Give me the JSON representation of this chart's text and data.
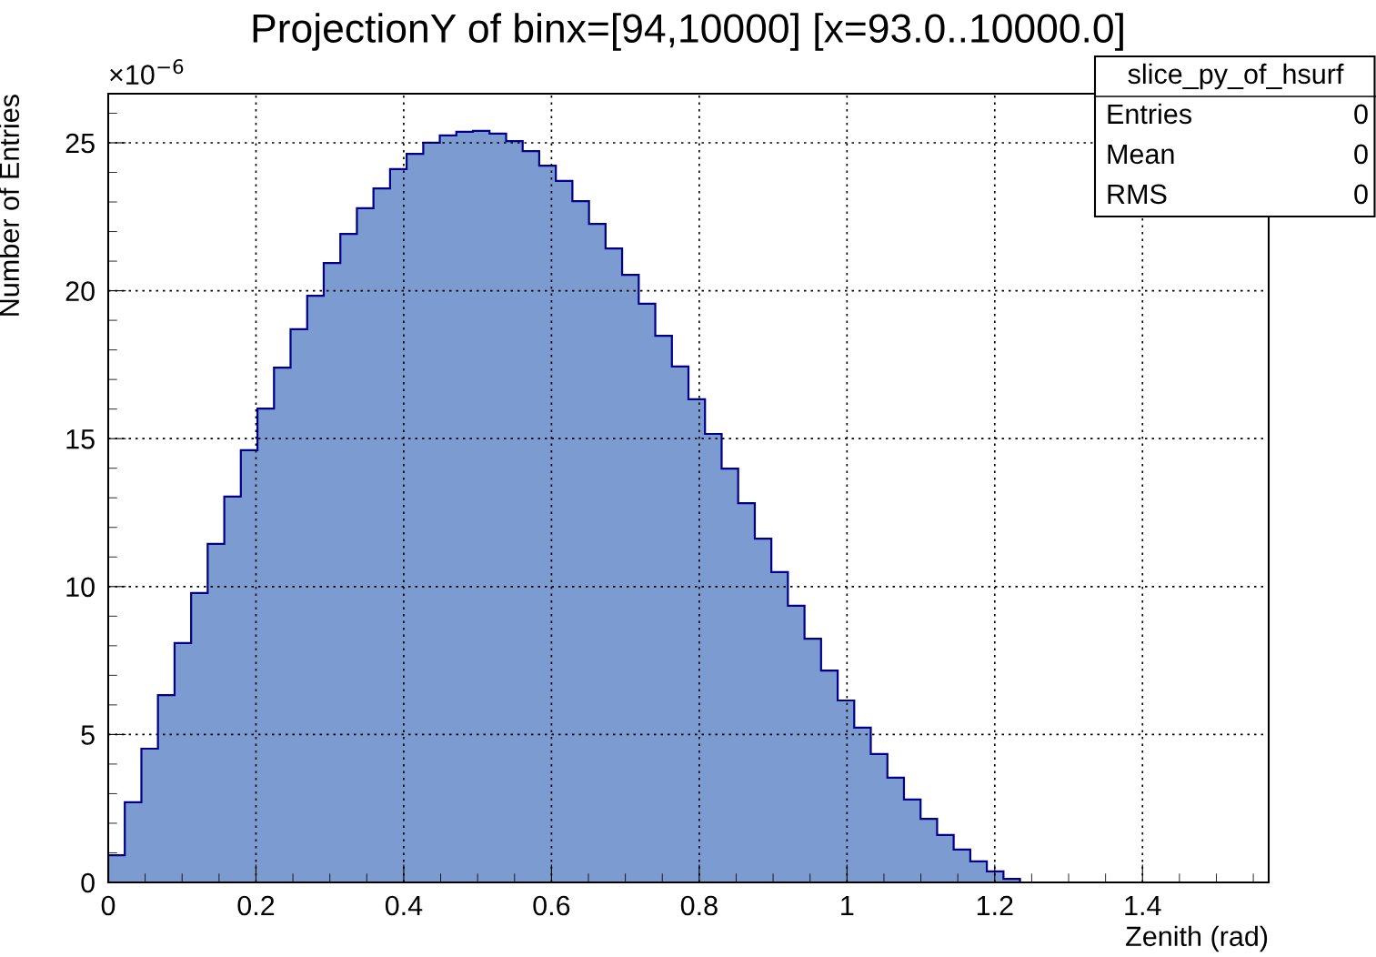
{
  "chart_data": {
    "type": "histogram",
    "title": "ProjectionY of binx=[94,10000] [x=93.0..10000.0]",
    "xlabel": "Zenith (rad)",
    "ylabel": "Number of Entries",
    "bins": [
      0,
      0.0224,
      0.0449,
      0.0673,
      0.0898,
      0.1122,
      0.1346,
      0.1571,
      0.1795,
      0.202,
      0.2244,
      0.2468,
      0.2693,
      0.2917,
      0.3142,
      0.3366,
      0.359,
      0.3815,
      0.4039,
      0.4264,
      0.4488,
      0.4712,
      0.4937,
      0.5161,
      0.5386,
      0.561,
      0.5834,
      0.6059,
      0.6283,
      0.6508,
      0.6732,
      0.6956,
      0.7181,
      0.7405,
      0.763,
      0.7854,
      0.8078,
      0.8303,
      0.8527,
      0.8752,
      0.8976,
      0.92,
      0.9425,
      0.9649,
      0.9874,
      1.0098,
      1.0322,
      1.0547,
      1.0771,
      1.0996,
      1.122,
      1.1444,
      1.1669,
      1.1893,
      1.2118,
      1.2342,
      1.2566,
      1.2791,
      1.3015,
      1.324,
      1.3464,
      1.3688,
      1.3913,
      1.4137,
      1.4362,
      1.4586,
      1.481,
      1.5035,
      1.5259,
      1.5484,
      1.5708
    ],
    "values": [
      0.92,
      2.71,
      4.52,
      6.33,
      8.09,
      9.78,
      11.44,
      13.04,
      14.61,
      16.02,
      17.4,
      18.7,
      19.83,
      20.94,
      21.92,
      22.79,
      23.46,
      24.11,
      24.63,
      25.0,
      25.25,
      25.37,
      25.4,
      25.31,
      25.06,
      24.72,
      24.23,
      23.71,
      23.03,
      22.26,
      21.43,
      20.54,
      19.56,
      18.48,
      17.44,
      16.33,
      15.16,
      13.99,
      12.82,
      11.62,
      10.49,
      9.35,
      8.24,
      7.16,
      6.15,
      5.23,
      4.34,
      3.54,
      2.8,
      2.15,
      1.6,
      1.11,
      0.71,
      0.37,
      0.12,
      0,
      0,
      0,
      0,
      0,
      0,
      0,
      0,
      0,
      0,
      0,
      0,
      0,
      0,
      0
    ],
    "color": "#7b9bd1",
    "xlim": [
      0,
      1.5708
    ],
    "xticks": [
      0,
      0.2,
      0.4,
      0.6,
      0.8,
      1,
      1.2,
      1.4
    ],
    "ylim": [
      0,
      26.66
    ],
    "yticks": [
      0,
      5,
      10,
      15,
      20,
      25
    ],
    "grid": true,
    "annotations": [
      "×10$^{−6}$",
      "slice_py_of_hsurf",
      "Entries",
      "0",
      "Mean",
      "0",
      "RMS",
      "0"
    ]
  }
}
